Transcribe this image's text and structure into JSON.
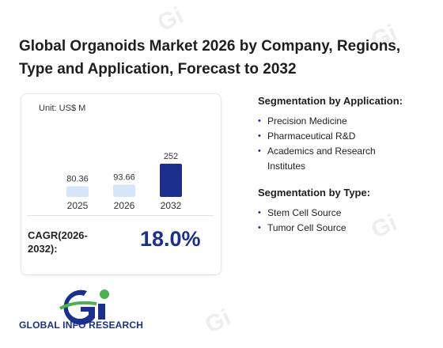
{
  "title": "Global Organoids Market 2026 by Company, Regions, Type and Application, Forecast to 2032",
  "unit_label": "Unit: US$ M",
  "chart_data": {
    "type": "bar",
    "categories": [
      "2025",
      "2026",
      "2032"
    ],
    "values": [
      80.36,
      93.66,
      252
    ],
    "value_labels": [
      "80.36",
      "93.66",
      "252"
    ],
    "bar_colors": [
      "#d6e6fa",
      "#d6e6fa",
      "#1b2f8c"
    ],
    "title": "",
    "xlabel": "",
    "ylabel": "",
    "ylim": [
      0,
      252
    ],
    "grid": false
  },
  "cagr": {
    "label_line1": "CAGR(2026-",
    "label_line2": "2032):",
    "value": "18.0%"
  },
  "segmentation_application": {
    "heading": "Segmentation by Application:",
    "items": [
      "Precision Medicine",
      "Pharmaceutical R&D",
      "Academics and Research Institutes"
    ]
  },
  "segmentation_type": {
    "heading": "Segmentation by Type:",
    "items": [
      "Stem Cell Source",
      "Tumor Cell Source"
    ]
  },
  "logo": {
    "text": "GLOBAL INFO RESEARCH",
    "mark": "Gi"
  },
  "colors": {
    "accent": "#1b2f8c",
    "light_bar": "#d6e6fa",
    "logo_green": "#4caf50"
  }
}
